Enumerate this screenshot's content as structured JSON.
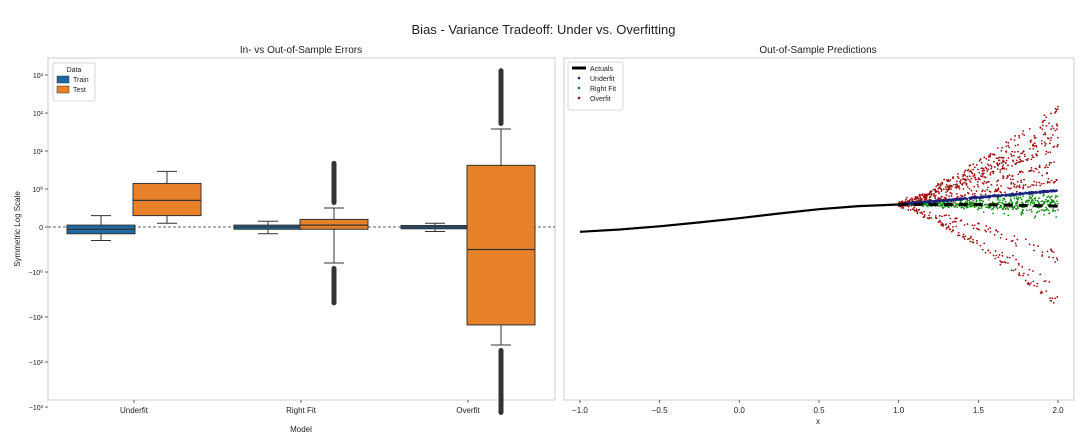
{
  "figure": {
    "suptitle": "Bias - Variance Tradeoff: Under vs. Overfitting"
  },
  "colors": {
    "train": "#1f6aa5",
    "test": "#e8822a",
    "underfit": "#1a237e",
    "right_fit": "#0a8a0a",
    "overfit": "#a01010",
    "actuals": "#000000"
  },
  "chart_data": [
    {
      "type": "box",
      "title": "In- vs Out-of-Sample Errors",
      "xlabel": "Model",
      "ylabel": "Symmetric Log Scale",
      "yscale": "symlog",
      "categories": [
        "Underfit",
        "Right Fit",
        "Overfit"
      ],
      "legend": {
        "title": "Data",
        "entries": [
          "Train",
          "Test"
        ],
        "placement": "top-left"
      },
      "reference_line": {
        "y": 0,
        "style": "dashed"
      },
      "yticks": [
        {
          "value": 1000,
          "label": "10³"
        },
        {
          "value": 100,
          "label": "10²"
        },
        {
          "value": 10,
          "label": "10¹"
        },
        {
          "value": 1,
          "label": "10⁰"
        },
        {
          "value": 0,
          "label": "0"
        },
        {
          "value": -1,
          "label": "−10⁰"
        },
        {
          "value": -10,
          "label": "−10¹"
        },
        {
          "value": -100,
          "label": "−10²"
        },
        {
          "value": -1000,
          "label": "−10³"
        }
      ],
      "boxes": [
        {
          "category": "Underfit",
          "series": "Train",
          "whisker_low": -0.3,
          "q1": -0.15,
          "median": -0.05,
          "q3": 0.05,
          "whisker_high": 0.3
        },
        {
          "category": "Underfit",
          "series": "Test",
          "whisker_low": 0.1,
          "q1": 0.3,
          "median": 0.7,
          "q3": 1.4,
          "whisker_high": 2.9
        },
        {
          "category": "Right Fit",
          "series": "Train",
          "whisker_low": -0.15,
          "q1": -0.05,
          "median": 0.0,
          "q3": 0.05,
          "whisker_high": 0.15
        },
        {
          "category": "Right Fit",
          "series": "Test",
          "whisker_low": -0.8,
          "q1": -0.05,
          "median": 0.05,
          "q3": 0.2,
          "whisker_high": 0.5,
          "outliers_low": -5.5,
          "outliers_high": 5.5
        },
        {
          "category": "Overfit",
          "series": "Train",
          "whisker_low": -0.1,
          "q1": -0.04,
          "median": 0.0,
          "q3": 0.04,
          "whisker_high": 0.1
        },
        {
          "category": "Overfit",
          "series": "Test",
          "whisker_low": -42,
          "q1": -15,
          "median": -0.5,
          "q3": 4.2,
          "whisker_high": 38,
          "outliers_low": -1500,
          "outliers_high": 1500
        }
      ]
    },
    {
      "type": "scatter",
      "title": "Out-of-Sample Predictions",
      "xlabel": "x",
      "ylabel": "",
      "xlim": [
        -1.1,
        2.1
      ],
      "xticks": [
        -1.0,
        -0.5,
        0.0,
        0.5,
        1.0,
        1.5,
        2.0
      ],
      "xtick_labels": [
        "−1.0",
        "−0.5",
        "0.0",
        "0.5",
        "1.0",
        "1.5",
        "2.0"
      ],
      "legend": {
        "entries": [
          "Actuals",
          "Underfit",
          "Right Fit",
          "Overfit"
        ],
        "placement": "top-left"
      },
      "actuals_curve": {
        "x": [
          -1.0,
          -0.75,
          -0.5,
          -0.25,
          0.0,
          0.25,
          0.5,
          0.75,
          1.0,
          1.25,
          1.5,
          1.75,
          2.0
        ],
        "y": [
          -0.2,
          -0.14,
          -0.06,
          0.04,
          0.15,
          0.27,
          0.38,
          0.46,
          0.5,
          0.5,
          0.5,
          0.48,
          0.46
        ]
      },
      "underfit_line": {
        "x": [
          1.0,
          2.0
        ],
        "y": [
          0.5,
          0.86
        ]
      },
      "rightfit_spread": {
        "x_range": [
          1.0,
          2.0
        ],
        "center_end": 0.52,
        "half_width_end": 0.45
      },
      "overfit_spread": {
        "x_range": [
          1.0,
          2.0
        ],
        "half_width_end": 2.3
      }
    }
  ]
}
